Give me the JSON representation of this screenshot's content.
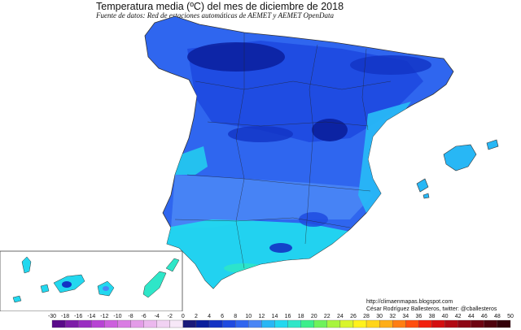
{
  "title": "Temperatura media (ºC) del mes de diciembre  de 2018",
  "subtitle": "Fuente de datos: Red de estaciones automáticas de AEMET y AEMET OpenData",
  "credits": {
    "url": "http://climaenmapas.blogspot.com",
    "author": "César Rodríguez Ballesteros, twitter: @cballesteros"
  },
  "legend": {
    "ticks": [
      "-30",
      "-18",
      "-16",
      "-14",
      "-12",
      "-10",
      "-8",
      "-6",
      "-4",
      "-2",
      "0",
      "2",
      "4",
      "6",
      "8",
      "10",
      "12",
      "14",
      "16",
      "18",
      "20",
      "22",
      "24",
      "26",
      "28",
      "30",
      "32",
      "34",
      "36",
      "38",
      "40",
      "42",
      "44",
      "46",
      "48",
      "50"
    ],
    "colors": [
      "#5a0b8a",
      "#7d1ea8",
      "#9a2ec2",
      "#b743d4",
      "#cc5fdd",
      "#d97de3",
      "#e39ce8",
      "#ebb8ee",
      "#f1d2f3",
      "#f7e8f8",
      "#1a1a7a",
      "#0a1f9c",
      "#1233c4",
      "#1f4be0",
      "#2f66ef",
      "#4a86f5",
      "#28b7f5",
      "#22d8ef",
      "#2ee6c8",
      "#3bef8c",
      "#6ff25a",
      "#a8f53e",
      "#d9f52a",
      "#fff21c",
      "#ffd51a",
      "#ffae17",
      "#ff7f13",
      "#ff4f10",
      "#f2200e",
      "#d40f10",
      "#b10a14",
      "#8e0715",
      "#6e0412",
      "#4f020e",
      "#33010a"
    ]
  },
  "regions": {
    "peninsula": "península",
    "balearic": "islas-baleares",
    "canary": "islas-canarias"
  },
  "colors": {
    "cold_core": "#0a1f9c",
    "north": "#1f4be0",
    "central": "#2f66ef",
    "south": "#28b7f5",
    "coast": "#22d8ef",
    "warm_coast": "#2ee6c8"
  }
}
